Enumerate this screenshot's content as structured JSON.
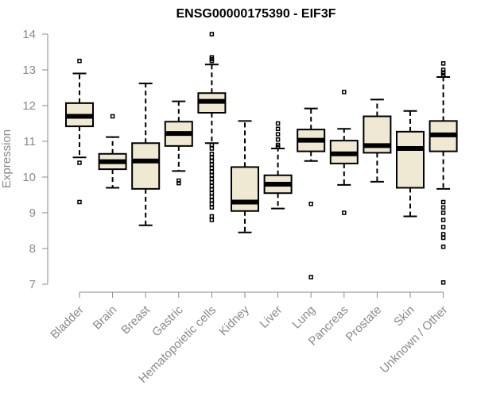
{
  "chart_data": {
    "type": "boxplot",
    "title": "ENSG00000175390 - EIF3F",
    "ylabel": "Expression",
    "xlabel": "",
    "ylim": [
      7,
      14
    ],
    "yticks": [
      7,
      8,
      9,
      10,
      11,
      12,
      13,
      14
    ],
    "grid": false,
    "box_fill": "#efe8d2",
    "categories": [
      "Bladder",
      "Brain",
      "Breast",
      "Gastric",
      "Hematopoietic cells",
      "Kidney",
      "Liver",
      "Lung",
      "Pancreas",
      "Prostate",
      "Skin",
      "Unknown / Other"
    ],
    "boxes": [
      {
        "category": "Bladder",
        "whisker_low": 10.55,
        "q1": 11.42,
        "median": 11.7,
        "q3": 12.07,
        "whisker_high": 12.9,
        "outliers": [
          13.25,
          10.4,
          9.3
        ]
      },
      {
        "category": "Brain",
        "whisker_low": 9.7,
        "q1": 10.22,
        "median": 10.43,
        "q3": 10.65,
        "whisker_high": 11.12,
        "outliers": [
          11.7
        ]
      },
      {
        "category": "Breast",
        "whisker_low": 8.65,
        "q1": 9.67,
        "median": 10.45,
        "q3": 10.95,
        "whisker_high": 12.62,
        "outliers": []
      },
      {
        "category": "Gastric",
        "whisker_low": 10.17,
        "q1": 10.87,
        "median": 11.22,
        "q3": 11.55,
        "whisker_high": 12.12,
        "outliers": [
          9.9,
          9.83
        ]
      },
      {
        "category": "Hematopoietic cells",
        "whisker_low": 10.95,
        "q1": 11.8,
        "median": 12.12,
        "q3": 12.35,
        "whisker_high": 13.15,
        "outliers": [
          14.0,
          13.35,
          13.3,
          13.25,
          10.9,
          10.8,
          10.65,
          10.55,
          10.45,
          10.35,
          10.25,
          10.15,
          10.05,
          9.95,
          9.85,
          9.75,
          9.65,
          9.55,
          9.45,
          9.35,
          9.25,
          9.15,
          8.9,
          8.8
        ]
      },
      {
        "category": "Kidney",
        "whisker_low": 8.45,
        "q1": 9.05,
        "median": 9.3,
        "q3": 10.28,
        "whisker_high": 11.57,
        "outliers": []
      },
      {
        "category": "Liver",
        "whisker_low": 9.12,
        "q1": 9.55,
        "median": 9.8,
        "q3": 10.05,
        "whisker_high": 10.8,
        "outliers": [
          11.5,
          11.35,
          11.2,
          11.05,
          10.9,
          10.85
        ]
      },
      {
        "category": "Lung",
        "whisker_low": 10.45,
        "q1": 10.72,
        "median": 11.03,
        "q3": 11.33,
        "whisker_high": 11.92,
        "outliers": [
          9.25,
          7.2
        ]
      },
      {
        "category": "Pancreas",
        "whisker_low": 9.78,
        "q1": 10.38,
        "median": 10.65,
        "q3": 11.02,
        "whisker_high": 11.35,
        "outliers": [
          12.38,
          9.0
        ]
      },
      {
        "category": "Prostate",
        "whisker_low": 9.87,
        "q1": 10.68,
        "median": 10.88,
        "q3": 11.7,
        "whisker_high": 12.17,
        "outliers": []
      },
      {
        "category": "Skin",
        "whisker_low": 8.9,
        "q1": 9.7,
        "median": 10.8,
        "q3": 11.27,
        "whisker_high": 11.85,
        "outliers": []
      },
      {
        "category": "Unknown / Other",
        "whisker_low": 9.67,
        "q1": 10.72,
        "median": 11.18,
        "q3": 11.57,
        "whisker_high": 12.8,
        "outliers": [
          13.18,
          13.0,
          12.93,
          12.9,
          12.85,
          9.3,
          9.15,
          9.0,
          8.8,
          8.6,
          8.4,
          8.3,
          8.05,
          7.05
        ]
      }
    ]
  }
}
